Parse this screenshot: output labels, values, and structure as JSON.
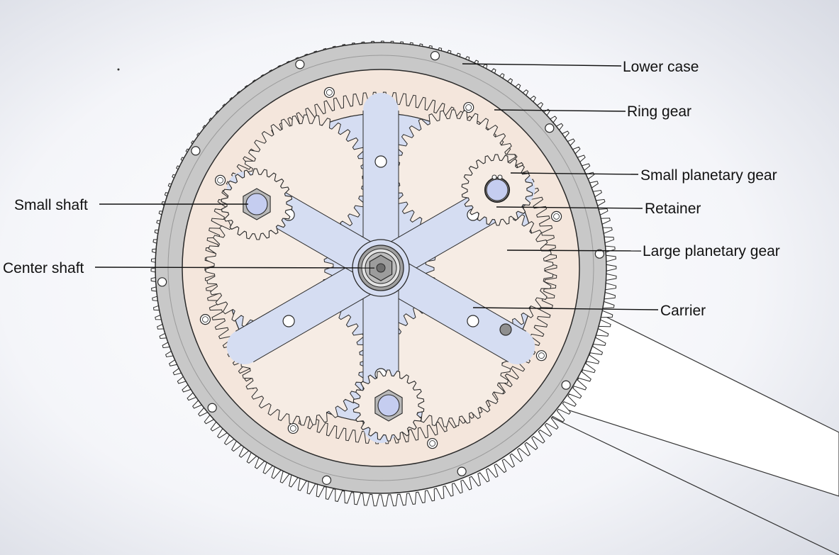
{
  "labels": {
    "lower_case": "Lower case",
    "ring_gear": "Ring gear",
    "small_planetary_gear": "Small planetary gear",
    "retainer": "Retainer",
    "large_planetary_gear": "Large planetary gear",
    "carrier": "Carrier",
    "small_shaft": "Small shaft",
    "center_shaft": "Center shaft"
  },
  "colors": {
    "case": "#c8c8c8",
    "ring_face": "#f4e6dc",
    "carrier": "#d5ddf2",
    "gear_fill": "#f6ece4",
    "shaft": "#c5cdf0",
    "outline": "#2a2a2a"
  }
}
